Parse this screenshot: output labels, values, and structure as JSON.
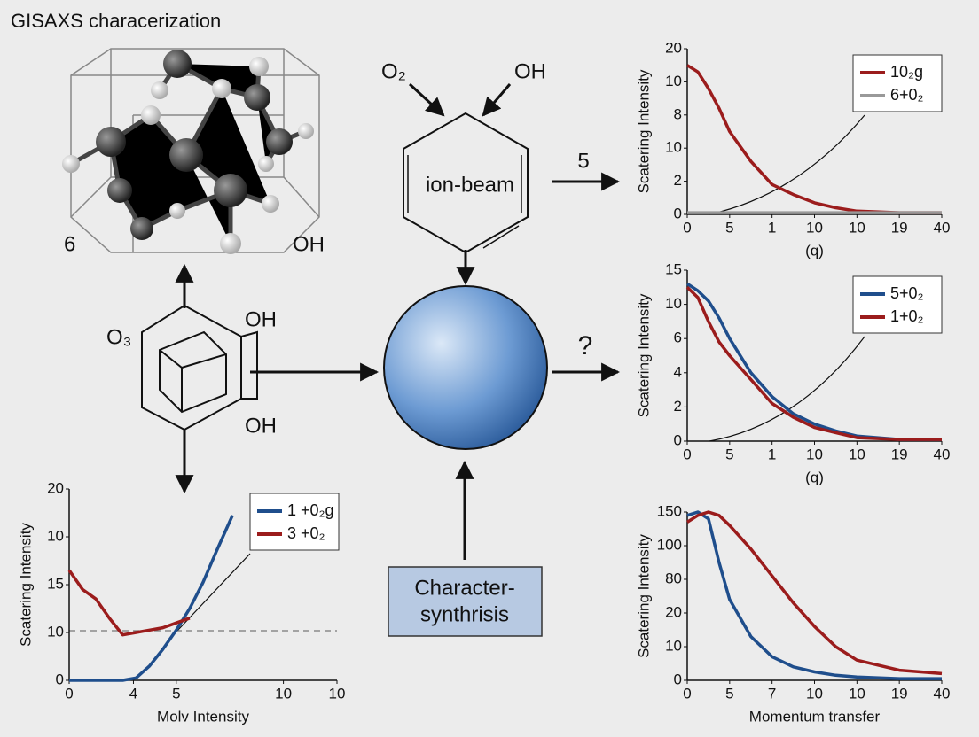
{
  "title": "GISAXS characerization",
  "diagram": {
    "molecule_left_label": "6",
    "molecule_right_label": "OH",
    "top_left_label": "O₂",
    "top_right_label": "OH",
    "hexagon_label": "ion-beam",
    "arrow_top_label": "5",
    "arrow_mid_label": "?",
    "cube_left_label": "O₃",
    "cube_top_label": "OH",
    "cube_bottom_label": "OH",
    "box_line1": "Character-",
    "box_line2": "synthrisis"
  },
  "chart_data": [
    {
      "type": "line",
      "ylabel": "Scatering Intensity",
      "xlabel": "(q)",
      "x": [
        0,
        0.25,
        0.5,
        0.75,
        1,
        1.5,
        2,
        2.5,
        3,
        3.5,
        4,
        5,
        6
      ],
      "xlim": [
        0,
        6
      ],
      "xticks": [
        {
          "value": 0,
          "label": "0"
        },
        {
          "value": 1,
          "label": "5"
        },
        {
          "value": 2,
          "label": "1"
        },
        {
          "value": 3,
          "label": "10"
        },
        {
          "value": 4,
          "label": "10"
        },
        {
          "value": 5,
          "label": "19"
        },
        {
          "value": 6,
          "label": "40"
        }
      ],
      "ylim": [
        0,
        5
      ],
      "yticks": [
        {
          "value": 0,
          "label": "0"
        },
        {
          "value": 1,
          "label": "2"
        },
        {
          "value": 2,
          "label": "10"
        },
        {
          "value": 3,
          "label": "8"
        },
        {
          "value": 4,
          "label": "10"
        },
        {
          "value": 5,
          "label": "20"
        }
      ],
      "legend": "upper right",
      "series": [
        {
          "name": "10₂g",
          "color": "#9b1c1c",
          "values": [
            4.5,
            4.3,
            3.8,
            3.2,
            2.5,
            1.6,
            0.9,
            0.6,
            0.35,
            0.2,
            0.1,
            0.05,
            0.05
          ]
        },
        {
          "name": "6+0₂",
          "color": "#999999",
          "values": [
            0.05,
            0.05,
            0.05,
            0.05,
            0.05,
            0.05,
            0.05,
            0.05,
            0.05,
            0.05,
            0.05,
            0.05,
            0.05
          ]
        }
      ]
    },
    {
      "type": "line",
      "ylabel": "Scatering Intensity",
      "xlabel": "(q)",
      "x": [
        0,
        0.25,
        0.5,
        0.75,
        1,
        1.5,
        2,
        2.5,
        3,
        3.5,
        4,
        5,
        6
      ],
      "xlim": [
        0,
        6
      ],
      "xticks": [
        {
          "value": 0,
          "label": "0"
        },
        {
          "value": 1,
          "label": "5"
        },
        {
          "value": 2,
          "label": "1"
        },
        {
          "value": 3,
          "label": "10"
        },
        {
          "value": 4,
          "label": "10"
        },
        {
          "value": 5,
          "label": "19"
        },
        {
          "value": 6,
          "label": "40"
        }
      ],
      "ylim": [
        0,
        5
      ],
      "yticks": [
        {
          "value": 0,
          "label": "0"
        },
        {
          "value": 1,
          "label": "2"
        },
        {
          "value": 2,
          "label": "4"
        },
        {
          "value": 3,
          "label": "6"
        },
        {
          "value": 4,
          "label": "10"
        },
        {
          "value": 5,
          "label": "15"
        }
      ],
      "legend": "upper right",
      "series": [
        {
          "name": "5+0₂",
          "color": "#1f4e8c",
          "values": [
            4.6,
            4.4,
            4.1,
            3.6,
            3.0,
            2.0,
            1.3,
            0.8,
            0.5,
            0.3,
            0.15,
            0.05,
            0.05
          ]
        },
        {
          "name": "1+0₂",
          "color": "#9b1c1c",
          "values": [
            4.5,
            4.2,
            3.5,
            2.9,
            2.5,
            1.8,
            1.1,
            0.7,
            0.4,
            0.25,
            0.1,
            0.05,
            0.05
          ]
        }
      ]
    },
    {
      "type": "line",
      "ylabel": "Scatering Intensity",
      "xlabel": "Momentum transfer",
      "x": [
        0,
        0.25,
        0.5,
        0.75,
        1,
        1.5,
        2,
        2.5,
        3,
        3.5,
        4,
        5,
        6
      ],
      "xlim": [
        0,
        6
      ],
      "xticks": [
        {
          "value": 0,
          "label": "0"
        },
        {
          "value": 1,
          "label": "5"
        },
        {
          "value": 2,
          "label": "7"
        },
        {
          "value": 3,
          "label": "10"
        },
        {
          "value": 4,
          "label": "10"
        },
        {
          "value": 5,
          "label": "19"
        },
        {
          "value": 6,
          "label": "40"
        }
      ],
      "ylim": [
        0,
        5
      ],
      "yticks": [
        {
          "value": 0,
          "label": "0"
        },
        {
          "value": 1,
          "label": "10"
        },
        {
          "value": 2,
          "label": "20"
        },
        {
          "value": 3,
          "label": "80"
        },
        {
          "value": 4,
          "label": "100"
        },
        {
          "value": 5,
          "label": "150"
        }
      ],
      "series": [
        {
          "color": "#1f4e8c",
          "values": [
            4.9,
            5.0,
            4.8,
            3.5,
            2.4,
            1.3,
            0.7,
            0.4,
            0.25,
            0.15,
            0.1,
            0.05,
            0.05
          ]
        },
        {
          "color": "#9b1c1c",
          "values": [
            4.7,
            4.9,
            5.0,
            4.9,
            4.6,
            3.9,
            3.1,
            2.3,
            1.6,
            1.0,
            0.6,
            0.3,
            0.2
          ]
        }
      ]
    },
    {
      "type": "line",
      "ylabel": "Scatering Intensity",
      "xlabel": "Molv Intensity",
      "x": [
        0,
        0.25,
        0.5,
        0.75,
        1,
        1.25,
        1.5,
        1.75,
        2,
        2.25,
        2.5,
        2.75,
        3.05
      ],
      "xlim": [
        0,
        5
      ],
      "xticks": [
        {
          "value": 0,
          "label": "0"
        },
        {
          "value": 1.2,
          "label": "4"
        },
        {
          "value": 2,
          "label": "5"
        },
        {
          "value": 4,
          "label": "10"
        },
        {
          "value": 5,
          "label": "10"
        }
      ],
      "ylim": [
        0,
        4
      ],
      "yticks": [
        {
          "value": 0,
          "label": "0"
        },
        {
          "value": 1,
          "label": "10"
        },
        {
          "value": 2,
          "label": "15"
        },
        {
          "value": 3,
          "label": "10"
        },
        {
          "value": 4,
          "label": "20"
        }
      ],
      "legend": "upper right",
      "series": [
        {
          "name": "1 +0₂g",
          "color": "#1f4e8c",
          "values": [
            0,
            0,
            0,
            0,
            0,
            0.05,
            0.3,
            0.65,
            1.05,
            1.5,
            2.05,
            2.7,
            3.45
          ]
        },
        {
          "name": "3 +0₂",
          "color": "#9b1c1c",
          "values": [
            2.3,
            1.9,
            1.7,
            1.3,
            0.95,
            1.0,
            1.05,
            1.1,
            1.2,
            1.3,
            null,
            null,
            null
          ]
        }
      ]
    }
  ]
}
